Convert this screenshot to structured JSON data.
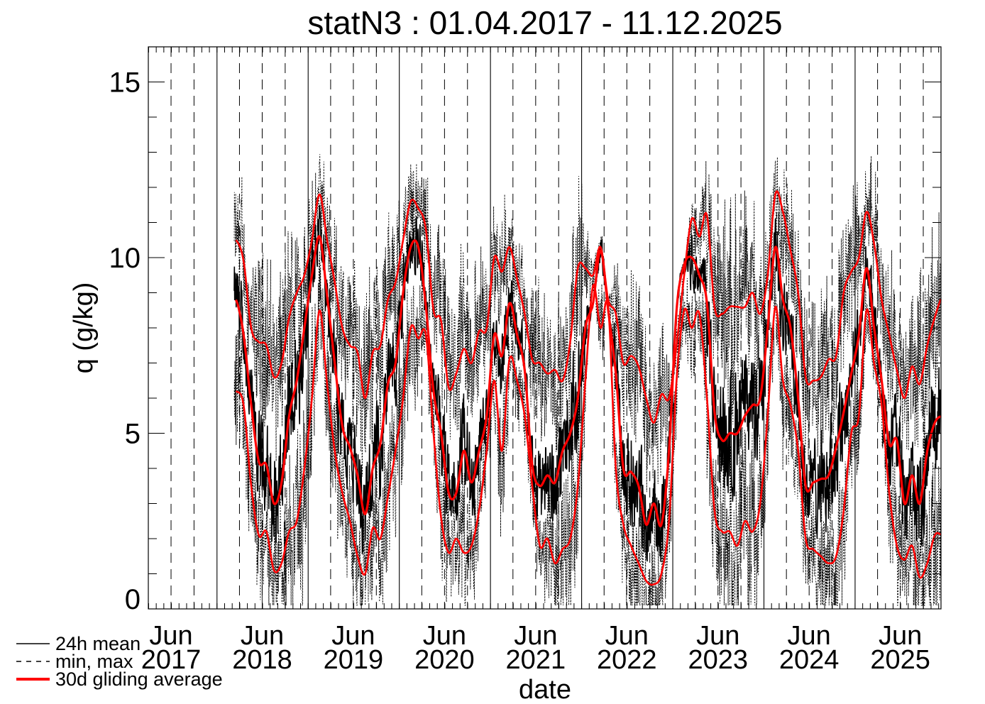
{
  "chart_data": {
    "type": "line",
    "title": "statN3 : 01.04.2017 - 11.12.2025",
    "xlabel": "date",
    "ylabel": "q (g/kg)",
    "xlim": [
      "2017-04-01",
      "2025-12-11"
    ],
    "ylim": [
      0,
      16
    ],
    "yticks": [
      "0",
      "5",
      "10",
      "15"
    ],
    "xticks": [
      {
        "month": "Jun",
        "year": "2017"
      },
      {
        "month": "Jun",
        "year": "2018"
      },
      {
        "month": "Jun",
        "year": "2019"
      },
      {
        "month": "Jun",
        "year": "2020"
      },
      {
        "month": "Jun",
        "year": "2021"
      },
      {
        "month": "Jun",
        "year": "2022"
      },
      {
        "month": "Jun",
        "year": "2023"
      },
      {
        "month": "Jun",
        "year": "2024"
      },
      {
        "month": "Jun",
        "year": "2025"
      }
    ],
    "grid": "vertical solid lines at year boundaries, dashed lines at quarters",
    "legend": {
      "placement": "bottom-left",
      "entries": [
        {
          "label": "24h mean",
          "style": "solid",
          "color": "#000000"
        },
        {
          "label": "min, max",
          "style": "dashed",
          "color": "#000000"
        },
        {
          "label": "30d gliding average",
          "style": "solid",
          "color": "#ff0000"
        }
      ]
    },
    "monthly_start": "2018-03",
    "series": [
      {
        "name": "30d gliding average",
        "of": "24h mean",
        "color": "#ff0000",
        "values": [
          8.8,
          7.8,
          5.8,
          4.2,
          4.1,
          3.0,
          3.6,
          5.5,
          6.5,
          8.0,
          9.5,
          10.6,
          8.9,
          7.0,
          5.2,
          4.6,
          3.8,
          2.7,
          4.0,
          4.7,
          6.4,
          7.0,
          9.0,
          10.3,
          10.3,
          8.6,
          6.2,
          5.0,
          3.3,
          3.3,
          4.5,
          3.6,
          4.5,
          5.5,
          7.8,
          7.2,
          8.7,
          7.8,
          6.8,
          4.1,
          3.5,
          3.8,
          3.6,
          4.5,
          5.0,
          6.0,
          8.0,
          8.7,
          10.2,
          8.5,
          6.7,
          4.0,
          3.9,
          3.5,
          2.4,
          3.0,
          2.4,
          4.5,
          8.5,
          9.8,
          10.0,
          9.5,
          8.7,
          5.6,
          4.8,
          5.0,
          5.0,
          5.5,
          5.8,
          6.0,
          8.0,
          10.3,
          8.8,
          8.0,
          6.0,
          3.5,
          3.6,
          3.7,
          3.8,
          4.6,
          5.6,
          6.7,
          7.8,
          9.7,
          8.0,
          6.5,
          4.7,
          4.8,
          3.0,
          3.8,
          3.0,
          4.5,
          5.3,
          5.5
        ]
      },
      {
        "name": "30d gliding average",
        "of": "max",
        "color": "#ff0000",
        "values": [
          10.5,
          9.9,
          8.0,
          7.6,
          7.5,
          6.6,
          7.0,
          8.3,
          9.0,
          9.5,
          10.5,
          11.8,
          10.5,
          9.3,
          8.0,
          7.5,
          7.3,
          6.0,
          7.3,
          7.5,
          8.8,
          9.3,
          10.5,
          11.6,
          11.4,
          10.8,
          8.5,
          8.2,
          6.3,
          6.7,
          7.4,
          7.0,
          7.9,
          8.0,
          10.0,
          9.6,
          10.3,
          9.4,
          8.4,
          7.1,
          7.0,
          6.7,
          6.8,
          6.5,
          7.6,
          9.7,
          9.7,
          9.5,
          10.3,
          8.8,
          8.4,
          7.0,
          7.2,
          6.9,
          6.0,
          5.3,
          6.1,
          6.0,
          7.5,
          9.5,
          11.1,
          10.6,
          11.2,
          8.6,
          8.4,
          8.6,
          8.6,
          8.6,
          9.0,
          8.4,
          9.5,
          11.8,
          11.3,
          10.2,
          9.0,
          6.6,
          6.5,
          6.6,
          7.1,
          7.2,
          9.0,
          9.6,
          10.0,
          11.3,
          10.4,
          8.8,
          7.8,
          6.8,
          6.0,
          6.9,
          6.4,
          7.5,
          8.3,
          8.9
        ]
      },
      {
        "name": "30d gliding average",
        "of": "min",
        "color": "#ff0000",
        "values": [
          6.2,
          5.8,
          3.5,
          2.1,
          2.2,
          1.1,
          1.3,
          2.2,
          2.5,
          4.0,
          6.0,
          8.5,
          6.4,
          4.5,
          3.3,
          2.5,
          1.5,
          1.0,
          2.3,
          2.0,
          3.2,
          4.5,
          6.0,
          8.0,
          7.7,
          7.8,
          5.0,
          2.6,
          1.6,
          2.0,
          1.6,
          1.8,
          2.8,
          4.5,
          6.5,
          4.5,
          7.1,
          6.5,
          5.5,
          3.5,
          1.8,
          2.0,
          1.3,
          1.7,
          2.0,
          3.5,
          6.5,
          9.2,
          8.0,
          8.6,
          4.0,
          2.4,
          1.8,
          1.3,
          0.8,
          0.7,
          1.0,
          2.5,
          6.5,
          8.5,
          8.0,
          8.4,
          6.0,
          2.8,
          2.2,
          2.2,
          1.8,
          2.5,
          2.2,
          3.0,
          5.5,
          8.6,
          6.5,
          5.8,
          4.5,
          2.0,
          1.7,
          1.5,
          1.3,
          1.5,
          2.8,
          5.0,
          5.5,
          8.5,
          7.0,
          5.8,
          3.3,
          1.8,
          1.4,
          1.8,
          0.9,
          1.3,
          2.1,
          2.1
        ]
      }
    ]
  }
}
